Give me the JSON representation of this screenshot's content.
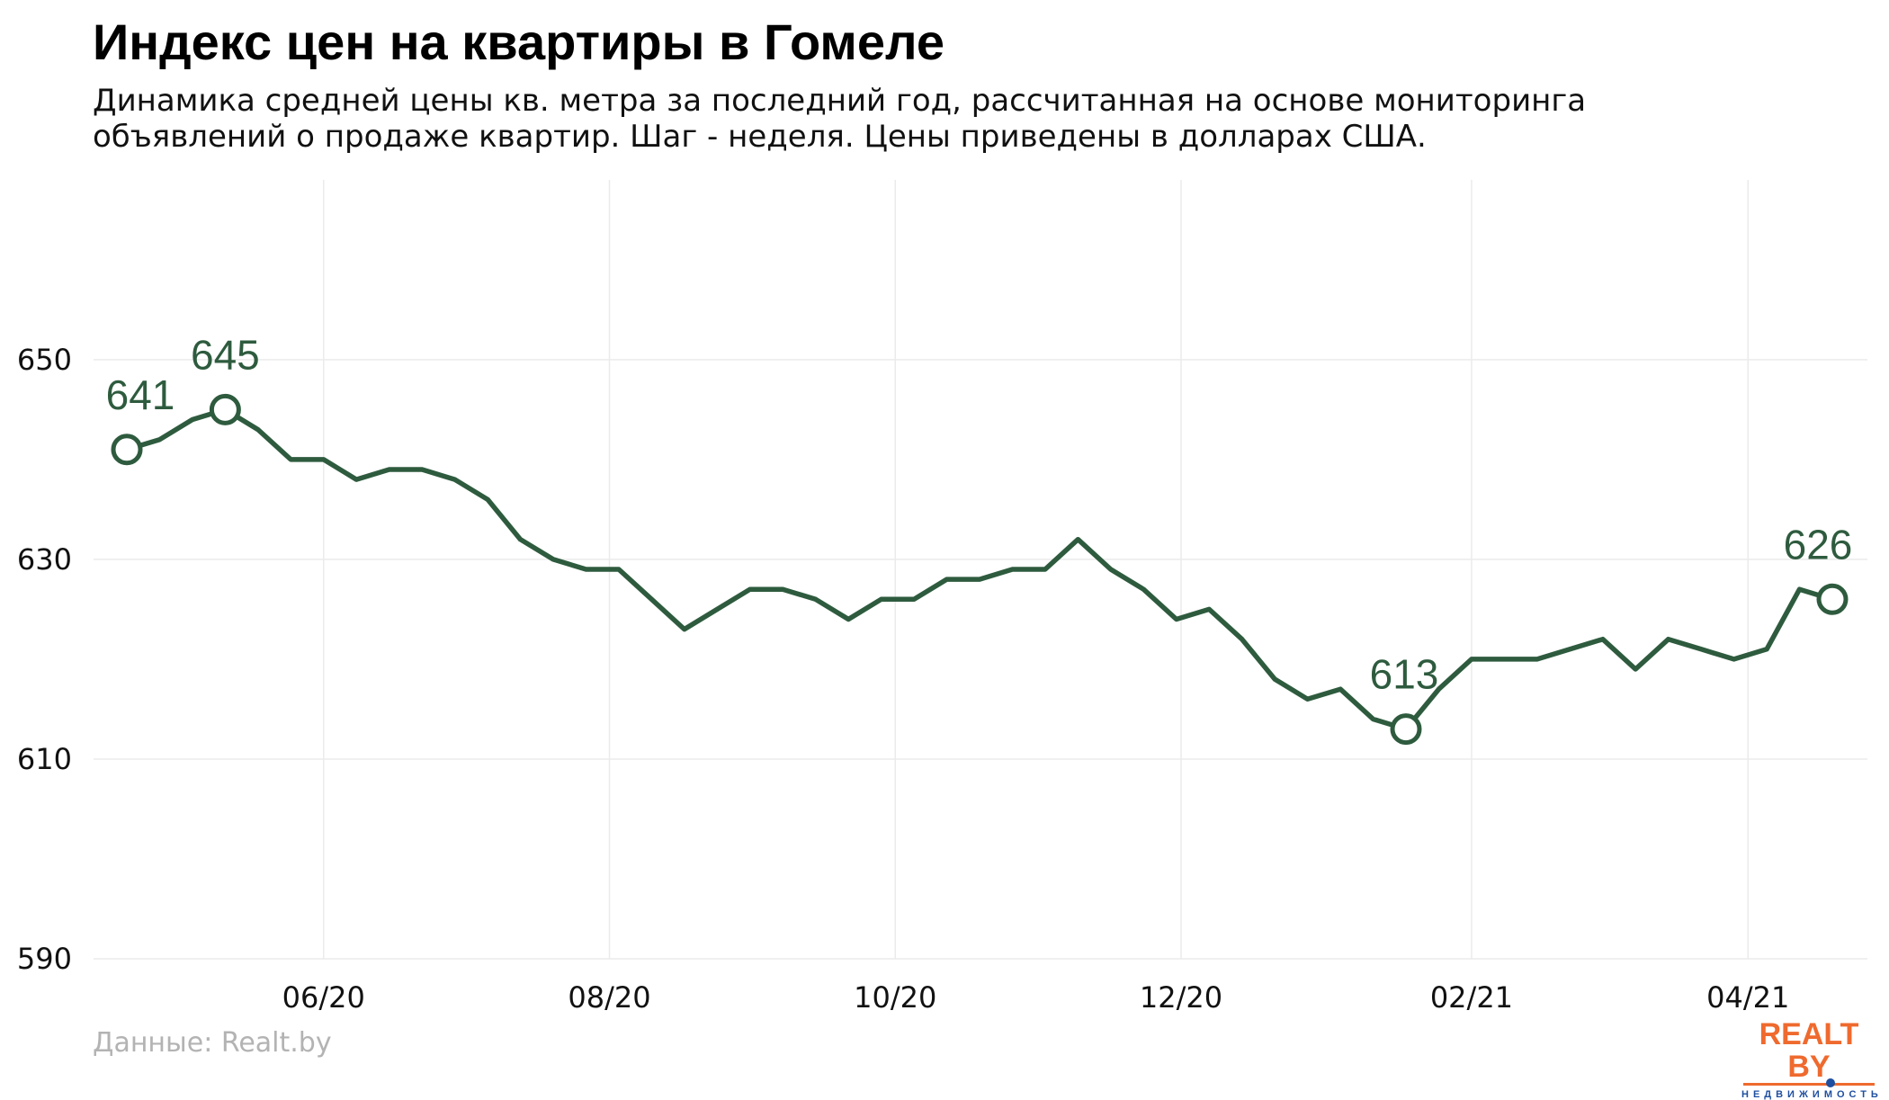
{
  "header": {
    "title": "Индекс цен на квартиры в Гомеле",
    "subtitle_line1": "Динамика средней цены кв. метра за последний год, рассчитанная на основе мониторинга",
    "subtitle_line2": "объявлений о продаже квартир. Шаг - неделя. Цены приведены в долларах США."
  },
  "footer": {
    "source": "Данные: Realt.by",
    "logo_text": "REALT BY",
    "logo_subtext": "НЕДВИЖИМОСТЬ"
  },
  "chart_data": {
    "type": "line",
    "title": "Индекс цен на квартиры в Гомеле",
    "xlabel": "",
    "ylabel": "",
    "x_start": "2020-04-20",
    "x_step": "week",
    "values": [
      641,
      642,
      644,
      645,
      643,
      640,
      640,
      638,
      639,
      639,
      638,
      636,
      632,
      630,
      629,
      629,
      626,
      623,
      625,
      627,
      627,
      626,
      624,
      626,
      626,
      628,
      628,
      629,
      629,
      632,
      629,
      627,
      624,
      625,
      622,
      618,
      616,
      617,
      614,
      613,
      617,
      620,
      620,
      620,
      621,
      622,
      619,
      622,
      621,
      620,
      621,
      627,
      626
    ],
    "ylim": [
      590,
      668
    ],
    "yticks": [
      590,
      610,
      630,
      650
    ],
    "xticks": [
      {
        "date": "2020-06-01",
        "label": "06/20"
      },
      {
        "date": "2020-08-01",
        "label": "08/20"
      },
      {
        "date": "2020-10-01",
        "label": "10/20"
      },
      {
        "date": "2020-12-01",
        "label": "12/20"
      },
      {
        "date": "2021-02-01",
        "label": "02/21"
      },
      {
        "date": "2021-04-01",
        "label": "04/21"
      }
    ],
    "annotations": [
      {
        "index": 0,
        "label": "641"
      },
      {
        "index": 3,
        "label": "645"
      },
      {
        "index": 39,
        "label": "613"
      },
      {
        "index": 52,
        "label": "626"
      }
    ],
    "grid": true,
    "legend": "none",
    "line_color": "#2e5b3e",
    "grid_color": "#ebebeb"
  }
}
